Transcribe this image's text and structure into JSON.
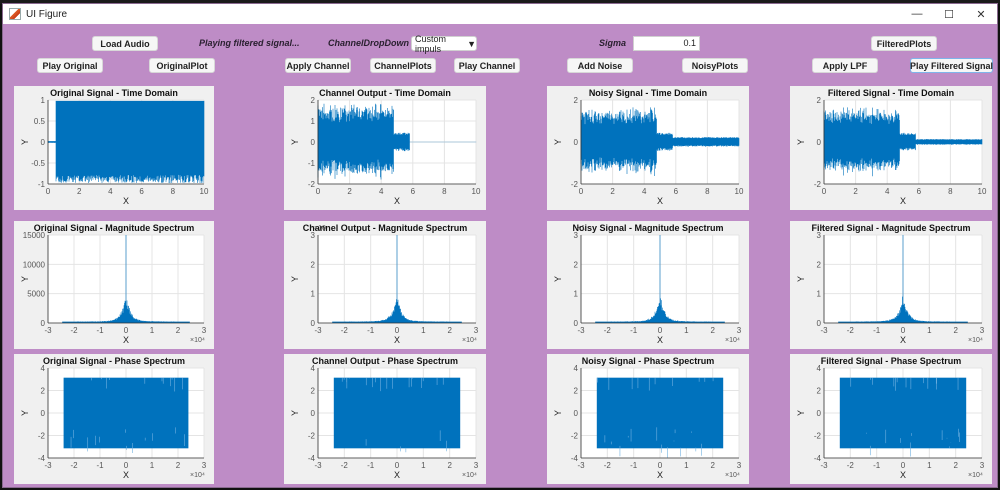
{
  "window": {
    "title": "UI Figure",
    "controls": {
      "minimize": "—",
      "maximize": "☐",
      "close": "✕"
    }
  },
  "toolbar": {
    "load_audio": "Load Audio",
    "status_text": "Playing filtered signal...",
    "channel_dropdown_label": "ChannelDropDown",
    "channel_dropdown_value": "Custom impuls",
    "sigma_label": "Sigma",
    "sigma_value": "0.1",
    "filtered_plots": "FilteredPlots",
    "play_original": "Play Original",
    "original_plot": "OriginalPlot",
    "apply_channel": "Apply Channel",
    "channel_plots": "ChannelPlots",
    "play_channel": "Play Channel",
    "add_noise": "Add Noise",
    "noisy_plots": "NoisyPlots",
    "apply_lpf": "Apply LPF",
    "play_filtered": "Play Filtered Signal"
  },
  "colors": {
    "background": "#be8cc6",
    "plot_line": "#0072bd",
    "axes_bg": "#ffffff",
    "panel_bg": "#f0f0f0"
  },
  "plots": {
    "orig_time": {
      "title": "Original Signal - Time Domain",
      "xlabel": "X",
      "ylabel": "Y",
      "xticks": [
        "0",
        "2",
        "4",
        "6",
        "8",
        "10"
      ],
      "yticks": [
        "1",
        "0.5",
        "0",
        "-0.5",
        "-1"
      ],
      "exp": ""
    },
    "chan_time": {
      "title": "Channel Output - Time Domain",
      "xlabel": "X",
      "ylabel": "Y",
      "xticks": [
        "0",
        "2",
        "4",
        "6",
        "8",
        "10"
      ],
      "yticks": [
        "2",
        "1",
        "0",
        "-1",
        "-2"
      ],
      "exp": ""
    },
    "noisy_time": {
      "title": "Noisy Signal - Time Domain",
      "xlabel": "X",
      "ylabel": "Y",
      "xticks": [
        "0",
        "2",
        "4",
        "6",
        "8",
        "10"
      ],
      "yticks": [
        "2",
        "0",
        "-2"
      ],
      "exp": ""
    },
    "filt_time": {
      "title": "Filtered Signal - Time Domain",
      "xlabel": "X",
      "ylabel": "Y",
      "xticks": [
        "0",
        "2",
        "4",
        "6",
        "8",
        "10"
      ],
      "yticks": [
        "2",
        "0",
        "-2"
      ],
      "exp": ""
    },
    "orig_mag": {
      "title": "Original Signal - Magnitude Spectrum",
      "xlabel": "X",
      "ylabel": "Y",
      "xticks": [
        "-3",
        "-2",
        "-1",
        "0",
        "1",
        "2",
        "3"
      ],
      "yticks": [
        "15000",
        "10000",
        "5000",
        "0"
      ],
      "exp": "×10⁴"
    },
    "chan_mag": {
      "title": "Channel Output - Magnitude Spectrum",
      "xlabel": "X",
      "ylabel": "Y",
      "xticks": [
        "-3",
        "-2",
        "-1",
        "0",
        "1",
        "2",
        "3"
      ],
      "yticks": [
        "3",
        "2",
        "1",
        "0"
      ],
      "exp": "×10⁴",
      "yexp": "×10"
    },
    "noisy_mag": {
      "title": "Noisy Signal - Magnitude Spectrum",
      "xlabel": "X",
      "ylabel": "Y",
      "xticks": [
        "-3",
        "-2",
        "-1",
        "0",
        "1",
        "2",
        "3"
      ],
      "yticks": [
        "3",
        "2",
        "1",
        "0"
      ],
      "exp": "×10⁴",
      "yexp": "×1"
    },
    "filt_mag": {
      "title": "Filtered Signal - Magnitude Spectrum",
      "xlabel": "X",
      "ylabel": "Y",
      "xticks": [
        "-3",
        "-2",
        "-1",
        "0",
        "1",
        "2",
        "3"
      ],
      "yticks": [
        "3",
        "2",
        "1",
        "0"
      ],
      "exp": "×10⁴",
      "yexp": "×"
    },
    "orig_phase": {
      "title": "Original Signal - Phase Spectrum",
      "xlabel": "X",
      "ylabel": "Y",
      "xticks": [
        "-3",
        "-2",
        "-1",
        "0",
        "1",
        "2",
        "3"
      ],
      "yticks": [
        "4",
        "2",
        "0",
        "-2",
        "-4"
      ],
      "exp": "×10⁴"
    },
    "chan_phase": {
      "title": "Channel Output - Phase Spectrum",
      "xlabel": "X",
      "ylabel": "Y",
      "xticks": [
        "-3",
        "-2",
        "-1",
        "0",
        "1",
        "2",
        "3"
      ],
      "yticks": [
        "4",
        "2",
        "0",
        "-2",
        "-4"
      ],
      "exp": "×10⁴"
    },
    "noisy_phase": {
      "title": "Noisy Signal - Phase Spectrum",
      "xlabel": "X",
      "ylabel": "Y",
      "xticks": [
        "-3",
        "-2",
        "-1",
        "0",
        "1",
        "2",
        "3"
      ],
      "yticks": [
        "4",
        "2",
        "0",
        "-2",
        "-4"
      ],
      "exp": "×10⁴"
    },
    "filt_phase": {
      "title": "Filtered Signal - Phase Spectrum",
      "xlabel": "X",
      "ylabel": "Y",
      "xticks": [
        "-3",
        "-2",
        "-1",
        "0",
        "1",
        "2",
        "3"
      ],
      "yticks": [
        "4",
        "2",
        "0",
        "-2",
        "-4"
      ],
      "exp": "×10⁴"
    }
  }
}
